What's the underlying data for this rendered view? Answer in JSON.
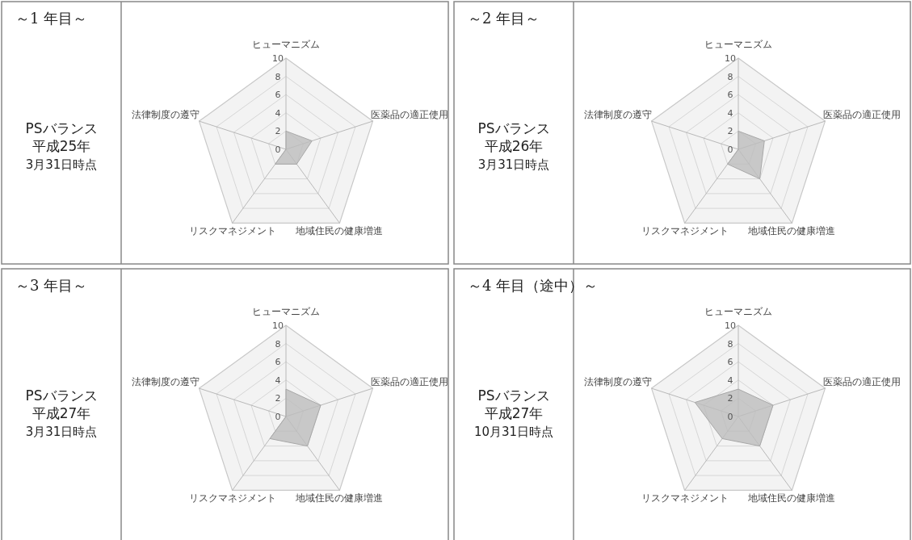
{
  "chart_data": [
    {
      "type": "radar",
      "title": "～1 年目～",
      "annotations": [
        "PSバランス",
        "平成25年",
        "3月31日時点"
      ],
      "categories": [
        "ヒューマニズム",
        "医薬品の適正使用",
        "地域住民の健康増進",
        "リスクマネジメント",
        "法律制度の遵守"
      ],
      "ylim": [
        0,
        10
      ],
      "yticks": [
        0,
        2,
        4,
        6,
        8,
        10
      ],
      "series": [
        {
          "color": "#bdbdbd",
          "values": [
            2,
            3,
            2,
            2,
            0
          ]
        }
      ]
    },
    {
      "type": "radar",
      "title": "～2 年目～",
      "annotations": [
        "PSバランス",
        "平成26年",
        "3月31日時点"
      ],
      "categories": [
        "ヒューマニズム",
        "医薬品の適正使用",
        "地域住民の健康増進",
        "リスクマネジメント",
        "法律制度の遵守"
      ],
      "ylim": [
        0,
        10
      ],
      "yticks": [
        0,
        2,
        4,
        6,
        8,
        10
      ],
      "series": [
        {
          "color": "#bdbdbd",
          "values": [
            2,
            3,
            4,
            2,
            0
          ]
        }
      ]
    },
    {
      "type": "radar",
      "title": "～3 年目～",
      "annotations": [
        "PSバランス",
        "平成27年",
        "3月31日時点"
      ],
      "categories": [
        "ヒューマニズム",
        "医薬品の適正使用",
        "地域住民の健康増進",
        "リスクマネジメント",
        "法律制度の遵守"
      ],
      "ylim": [
        0,
        10
      ],
      "yticks": [
        0,
        2,
        4,
        6,
        8,
        10
      ],
      "series": [
        {
          "color": "#bdbdbd",
          "values": [
            3,
            4,
            4,
            3,
            0
          ]
        }
      ]
    },
    {
      "type": "radar",
      "title": "～4 年目（途中）～",
      "annotations": [
        "PSバランス",
        "平成27年",
        "10月31日時点"
      ],
      "categories": [
        "ヒューマニズム",
        "医薬品の適正使用",
        "地域住民の健康増進",
        "リスクマネジメント",
        "法律制度の遵守"
      ],
      "ylim": [
        0,
        10
      ],
      "yticks": [
        0,
        2,
        4,
        6,
        8,
        10
      ],
      "series": [
        {
          "color": "#bdbdbd",
          "values": [
            3,
            4,
            4,
            3,
            5
          ]
        }
      ]
    }
  ]
}
